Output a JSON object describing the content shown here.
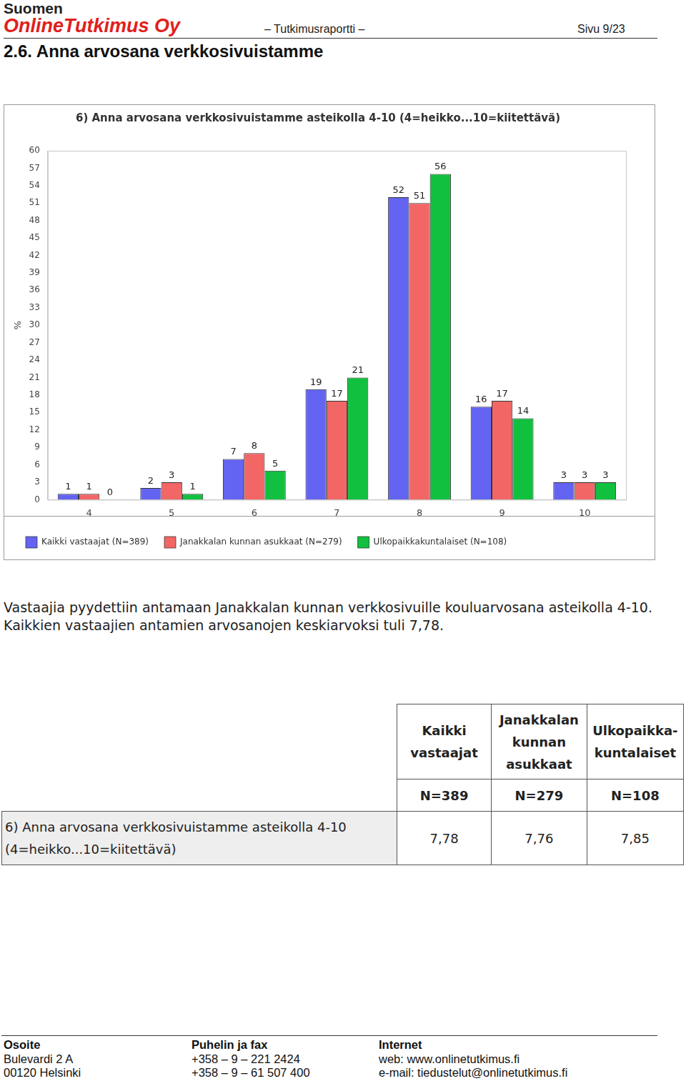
{
  "header": {
    "company_line1": "Suomen",
    "company_line2": "OnlineTutkimus Oy",
    "report": "– Tutkimusraportti –",
    "page": "Sivu 9/23"
  },
  "section_title": "2.6. Anna arvosana verkkosivuistamme",
  "chart_data": {
    "type": "bar",
    "title": "6) Anna arvosana verkkosivuistamme asteikolla 4-10 (4=heikko...10=kiitettävä)",
    "y_label": "%",
    "categories": [
      "4",
      "5",
      "6",
      "7",
      "8",
      "9",
      "10"
    ],
    "series": [
      {
        "name": "Kaikki vastaajat (N=389)",
        "color": "#6464f2",
        "values": [
          1,
          2,
          7,
          19,
          52,
          16,
          3
        ]
      },
      {
        "name": "Janakkalan kunnan asukkaat (N=279)",
        "color": "#f26666",
        "values": [
          1,
          3,
          8,
          17,
          51,
          17,
          3
        ]
      },
      {
        "name": "Ulkopaikkakuntalaiset (N=108)",
        "color": "#12c040",
        "values": [
          0,
          1,
          5,
          21,
          56,
          14,
          3
        ]
      }
    ],
    "ylim": [
      0,
      60
    ],
    "yticks": [
      0,
      3,
      6,
      9,
      12,
      15,
      18,
      21,
      24,
      27,
      30,
      33,
      36,
      39,
      42,
      45,
      48,
      51,
      54,
      57,
      60
    ],
    "grid": false,
    "legend": "bottom",
    "data_labels": true
  },
  "paragraph": "Vastaajia pyydettiin antamaan Janakkalan kunnan verkkosivuille kouluarvosana asteikolla 4-10. Kaikkien vastaajien antamien arvosanojen keskiarvoksi tuli 7,78.",
  "table": {
    "columns": [
      "Kaikki vastaajat",
      "Janakkalan kunnan asukkaat",
      "Ulkopaikka-kuntalaiset"
    ],
    "n_row": [
      "N=389",
      "N=279",
      "N=108"
    ],
    "rows": [
      {
        "label": "6) Anna arvosana verkkosivuistamme asteikolla 4-10 (4=heikko...10=kiitettävä)",
        "values": [
          "7,78",
          "7,76",
          "7,85"
        ]
      }
    ]
  },
  "footer": [
    {
      "heading": "Osoite",
      "lines": [
        "Bulevardi 2 A",
        "00120 Helsinki"
      ]
    },
    {
      "heading": "Puhelin ja fax",
      "lines": [
        "+358 – 9 – 221 2424",
        "+358 – 9 – 61 507 400"
      ]
    },
    {
      "heading": "Internet",
      "lines": [
        "web: www.onlinetutkimus.fi",
        "e-mail: tiedustelut@onlinetutkimus.fi"
      ]
    }
  ]
}
